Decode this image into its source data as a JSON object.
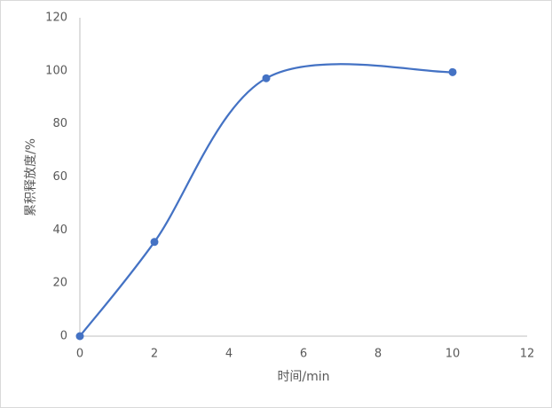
{
  "chart_data": {
    "type": "line",
    "x_label": "时间/min",
    "y_label": "累积释放度/%",
    "x": [
      0,
      2,
      5,
      10
    ],
    "values": [
      0,
      35.5,
      97.2,
      99.5
    ],
    "color": "#4472c4",
    "smooth": true,
    "xlim": [
      0,
      12
    ],
    "xticks": [
      0,
      2,
      4,
      6,
      8,
      10,
      12
    ],
    "ylim": [
      0,
      120
    ],
    "yticks": [
      0,
      20,
      40,
      60,
      80,
      100,
      120
    ]
  }
}
